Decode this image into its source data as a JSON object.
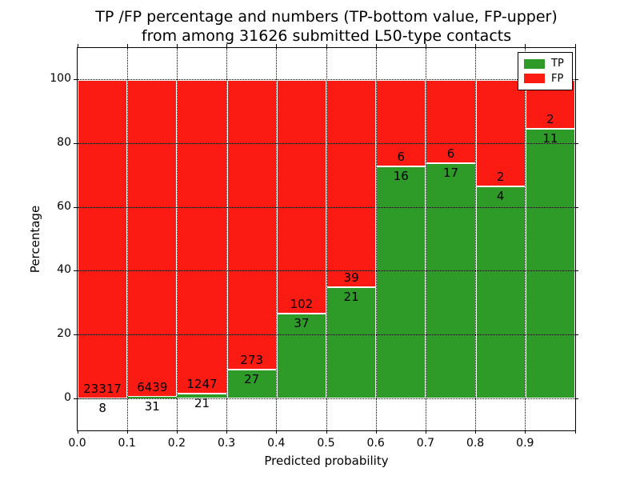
{
  "chart_data": {
    "type": "bar",
    "stacked": true,
    "normalized_to_percent": true,
    "title_line1": "TP /FP percentage and numbers (TP-bottom value, FP-upper)",
    "title_line2": "from among 31626 submitted L50-type contacts",
    "xlabel": "Predicted probability",
    "ylabel": "Percentage",
    "total_contacts": 31626,
    "bins": [
      "0.0-0.1",
      "0.1-0.2",
      "0.2-0.3",
      "0.3-0.4",
      "0.4-0.5",
      "0.5-0.6",
      "0.6-0.7",
      "0.7-0.8",
      "0.8-0.9",
      "0.9-1.0"
    ],
    "series": [
      {
        "name": "TP",
        "color": "#2e9b28",
        "counts": [
          8,
          31,
          21,
          27,
          37,
          21,
          16,
          17,
          4,
          11
        ]
      },
      {
        "name": "FP",
        "color": "#fb1b13",
        "counts": [
          23317,
          6439,
          1247,
          273,
          102,
          39,
          6,
          6,
          2,
          2
        ]
      }
    ],
    "tp_percent_of_bin": [
      0.03,
      0.48,
      1.66,
      9.0,
      26.62,
      35.0,
      72.73,
      73.91,
      66.67,
      84.62
    ],
    "label_rule": "TP count printed below green/red boundary, FP count printed above it",
    "x_ticks": [
      "0.0",
      "0.1",
      "0.2",
      "0.3",
      "0.4",
      "0.5",
      "0.6",
      "0.7",
      "0.8",
      "0.9"
    ],
    "y_ticks": [
      "0",
      "20",
      "40",
      "60",
      "80",
      "100"
    ],
    "xlim": [
      0.0,
      1.0
    ],
    "ylim": [
      -10,
      110
    ],
    "grid": "dotted, both axes",
    "frame_color": "#000000",
    "bar_edge_color": "#ffffff",
    "legend": {
      "position": "upper right",
      "entries": [
        {
          "label": "TP",
          "color": "#2e9b28"
        },
        {
          "label": "FP",
          "color": "#fb1b13"
        }
      ]
    }
  }
}
